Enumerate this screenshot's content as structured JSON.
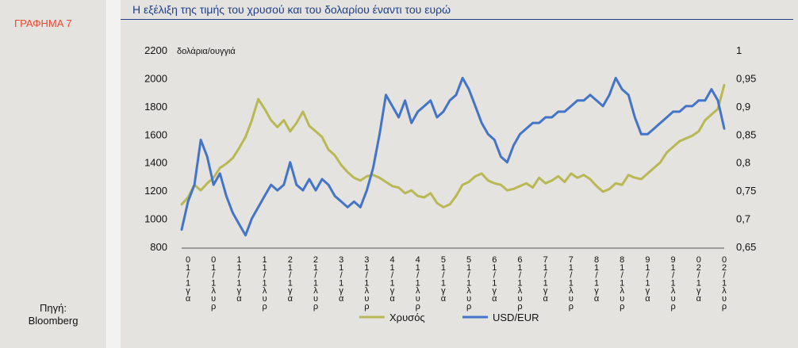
{
  "left": {
    "chart_label": "ΓΡΑΦΗΜΑ 7",
    "source_line1": "Πηγή:",
    "source_line2": "Bloomberg"
  },
  "colors": {
    "gold": "#b8b855",
    "usd_eur": "#4474c8",
    "title": "#1f3f86",
    "label": "#e84a32"
  },
  "chart_data": {
    "type": "line",
    "title": "Η  εξέλιξη της τιμής του χρυσού και του δολαρίου έναντι του ευρώ",
    "y_left_label": "δολάρια/ουγγιά",
    "y_left_ticks": [
      800,
      1000,
      1200,
      1400,
      1600,
      1800,
      2000,
      2200
    ],
    "y_left_lim": [
      800,
      2200
    ],
    "y_right_ticks": [
      "0,65",
      "0,7",
      "0,75",
      "0,8",
      "0,85",
      "0,9",
      "0,95",
      "1"
    ],
    "y_right_lim": [
      0.65,
      1.0
    ],
    "x_ticks": [
      "0 1 / 1 γ α",
      "0 1 / 1 λ υ ρ",
      "1 1 / 1 γ α",
      "1 1 / 1 λ υ ρ",
      "2 1 / 1 γ α",
      "2 1 / 1 λ υ ρ",
      "3 1 / 1 γ α",
      "3 1 / 1 λ υ ρ",
      "4 1 / 1 γ α",
      "4 1 / 1 λ υ ρ",
      "5 1 / 1 γ α",
      "5 1 / 1 λ υ ρ",
      "6 1 / 1 γ α",
      "6 1 / 1 λ υ ρ",
      "7 1 / 1 γ α",
      "7 1 / 1 λ υ ρ",
      "8 1 / 1 γ α",
      "8 1 / 1 λ υ ρ",
      "9 1 / 1 γ α",
      "9 1 / 1 λ υ ρ",
      "0 2 / 1 γ α",
      "0 2 / 1 λ υ ρ"
    ],
    "x": [
      0,
      0.25,
      0.5,
      0.75,
      1,
      1.25,
      1.5,
      1.75,
      2,
      2.25,
      2.5,
      2.75,
      3,
      3.25,
      3.5,
      3.75,
      4,
      4.25,
      4.5,
      4.75,
      5,
      5.25,
      5.5,
      5.75,
      6,
      6.25,
      6.5,
      6.75,
      7,
      7.25,
      7.5,
      7.75,
      8,
      8.25,
      8.5,
      8.75,
      9,
      9.25,
      9.5,
      9.75,
      10,
      10.25,
      10.5,
      10.75,
      11,
      11.25,
      11.5,
      11.75,
      12,
      12.25,
      12.5,
      12.75,
      13,
      13.25,
      13.5,
      13.75,
      14,
      14.25,
      14.5,
      14.75,
      15,
      15.25,
      15.5,
      15.75,
      16,
      16.25,
      16.5,
      16.75,
      17,
      17.25,
      17.5,
      17.75,
      18,
      18.25,
      18.5,
      18.75,
      19,
      19.25,
      19.5,
      19.75,
      20,
      20.25,
      20.5,
      20.75,
      21,
      21.25
    ],
    "series": [
      {
        "name": "Χρυσός",
        "axis": "left",
        "values": [
          1100,
          1150,
          1240,
          1200,
          1250,
          1290,
          1360,
          1390,
          1430,
          1500,
          1580,
          1700,
          1850,
          1780,
          1700,
          1650,
          1700,
          1620,
          1680,
          1760,
          1660,
          1620,
          1580,
          1490,
          1450,
          1380,
          1330,
          1290,
          1270,
          1300,
          1310,
          1290,
          1260,
          1230,
          1220,
          1180,
          1200,
          1160,
          1150,
          1180,
          1110,
          1080,
          1100,
          1160,
          1240,
          1260,
          1300,
          1320,
          1270,
          1250,
          1240,
          1200,
          1210,
          1230,
          1250,
          1220,
          1290,
          1250,
          1270,
          1300,
          1260,
          1320,
          1290,
          1310,
          1280,
          1230,
          1190,
          1210,
          1250,
          1240,
          1310,
          1290,
          1280,
          1320,
          1360,
          1400,
          1470,
          1510,
          1550,
          1570,
          1590,
          1620,
          1700,
          1740,
          1780,
          1950
        ]
      },
      {
        "name": "USD/EUR",
        "axis": "right",
        "values": [
          0.68,
          0.73,
          0.76,
          0.84,
          0.81,
          0.76,
          0.78,
          0.74,
          0.71,
          0.69,
          0.67,
          0.7,
          0.72,
          0.74,
          0.76,
          0.75,
          0.76,
          0.8,
          0.76,
          0.75,
          0.77,
          0.75,
          0.77,
          0.76,
          0.74,
          0.73,
          0.72,
          0.73,
          0.72,
          0.75,
          0.79,
          0.85,
          0.92,
          0.9,
          0.88,
          0.91,
          0.87,
          0.89,
          0.9,
          0.91,
          0.88,
          0.89,
          0.91,
          0.92,
          0.95,
          0.93,
          0.9,
          0.87,
          0.85,
          0.84,
          0.81,
          0.8,
          0.83,
          0.85,
          0.86,
          0.87,
          0.87,
          0.88,
          0.88,
          0.89,
          0.89,
          0.9,
          0.91,
          0.91,
          0.92,
          0.91,
          0.9,
          0.92,
          0.95,
          0.93,
          0.92,
          0.88,
          0.85,
          0.85,
          0.86,
          0.87,
          0.88,
          0.89,
          0.89,
          0.9,
          0.9,
          0.91,
          0.91,
          0.93,
          0.91,
          0.86
        ]
      }
    ],
    "legend_position": "bottom-center",
    "grid": false
  }
}
